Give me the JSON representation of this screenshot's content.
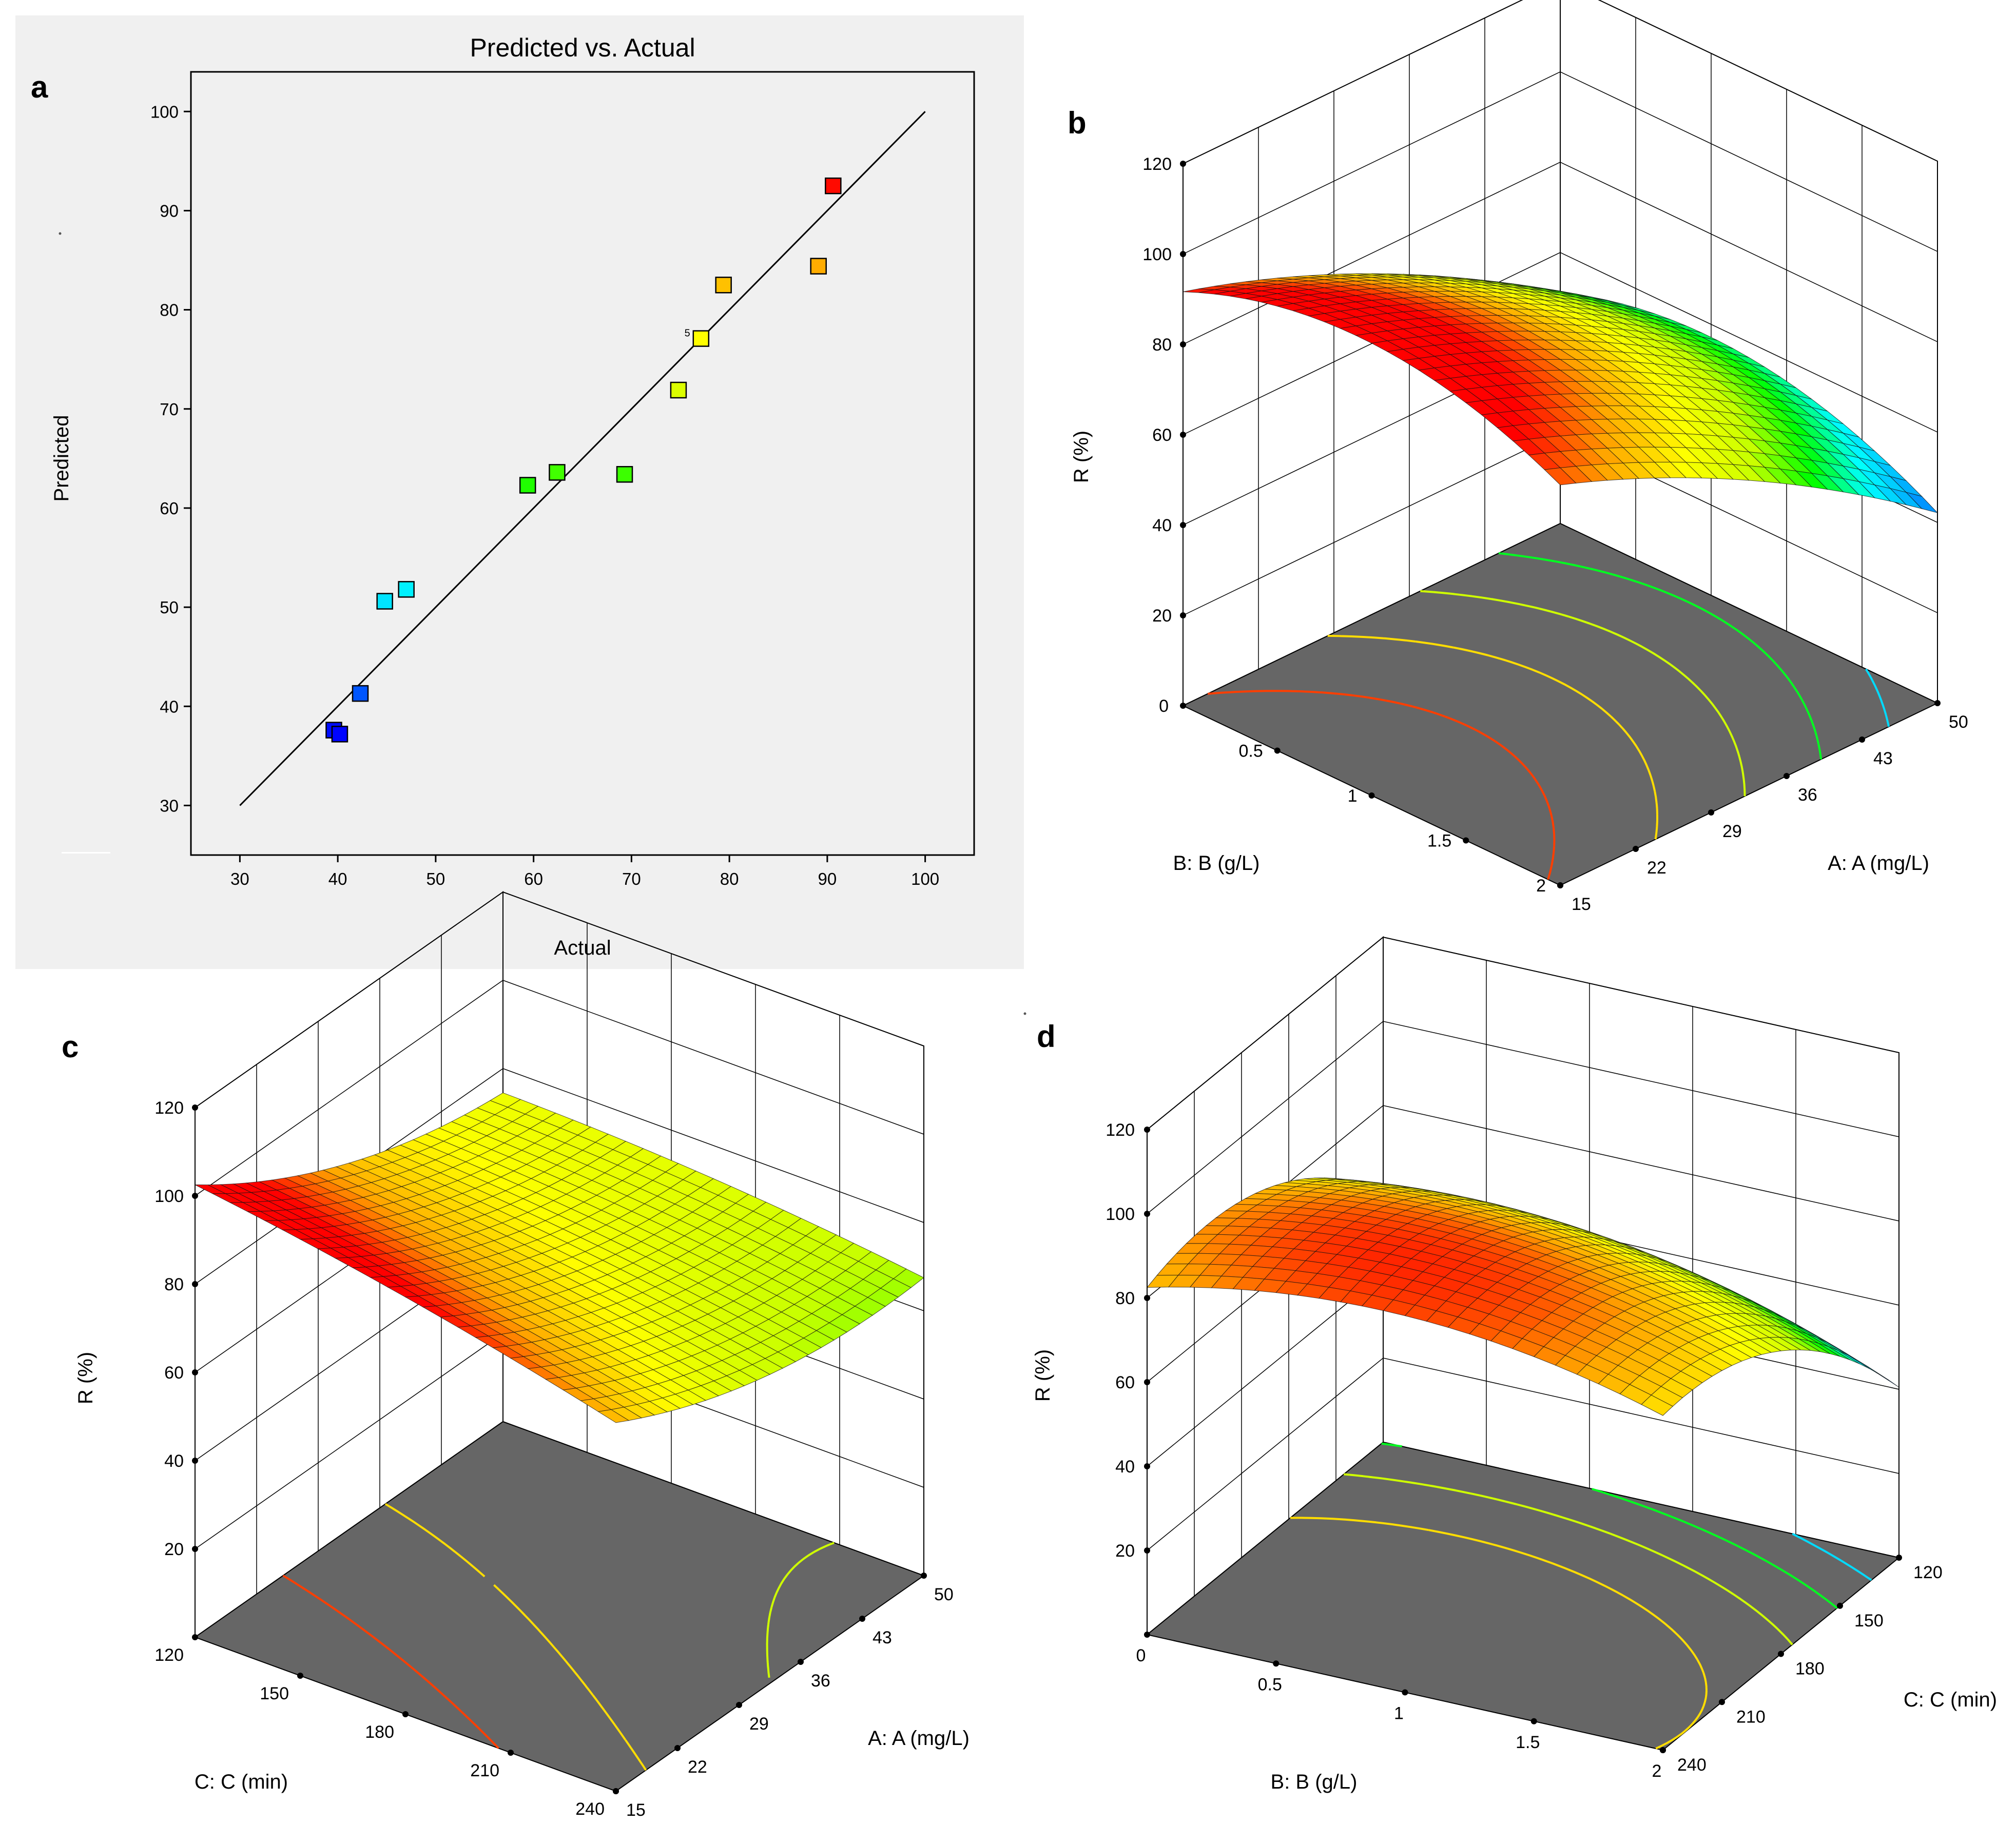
{
  "colors": {
    "panel_bg": "#f0f0f0",
    "floor": "#666666",
    "grid": "#000000",
    "line": "#000000",
    "point_stroke": "#000000",
    "colormap": [
      "#0000ff",
      "#00a0ff",
      "#00ffff",
      "#00ff00",
      "#c8ff00",
      "#ffff00",
      "#ffa500",
      "#ff0000"
    ]
  },
  "chart_data": [
    {
      "panel": "a",
      "panel_label": "a",
      "type": "scatter",
      "title": "Predicted vs. Actual",
      "xlabel": "Actual",
      "ylabel": "Predicted",
      "xlim": [
        25,
        105
      ],
      "ylim": [
        25,
        104
      ],
      "xticks": [
        30,
        40,
        50,
        60,
        70,
        80,
        90,
        100
      ],
      "yticks": [
        30,
        40,
        50,
        60,
        70,
        80,
        90,
        100
      ],
      "reference_line": {
        "x": [
          30,
          100
        ],
        "y": [
          30,
          100
        ]
      },
      "points": [
        {
          "x": 39.6,
          "y": 37.6
        },
        {
          "x": 40.2,
          "y": 37.2
        },
        {
          "x": 42.3,
          "y": 41.3
        },
        {
          "x": 44.8,
          "y": 50.6
        },
        {
          "x": 47.0,
          "y": 51.8
        },
        {
          "x": 59.4,
          "y": 62.3
        },
        {
          "x": 62.4,
          "y": 63.6
        },
        {
          "x": 69.3,
          "y": 63.4
        },
        {
          "x": 74.8,
          "y": 71.9
        },
        {
          "x": 77.1,
          "y": 77.1,
          "label": "5"
        },
        {
          "x": 79.4,
          "y": 82.5
        },
        {
          "x": 89.1,
          "y": 84.4
        },
        {
          "x": 90.6,
          "y": 92.5
        }
      ]
    },
    {
      "panel": "b",
      "panel_label": "b",
      "type": "surface",
      "zlabel": "R  (%)",
      "xlabel": "A: A (mg/L)",
      "ylabel": "B: B (g/L)",
      "zticks": [
        20,
        40,
        60,
        80,
        100,
        120
      ],
      "x_range": [
        15,
        50
      ],
      "y_range": [
        0,
        2
      ],
      "z_range": [
        0,
        120
      ],
      "xticks": [
        15,
        22,
        29,
        36,
        43,
        50
      ],
      "yticks": [
        "0",
        "0.5",
        "1",
        "1.5",
        "2"
      ],
      "surface": {
        "c0": 82.5,
        "ca": -21.75,
        "cb": 3.0,
        "caa": -4.1,
        "cbb": -10.0,
        "cab": 1.5
      },
      "contour_levels": [
        40,
        50,
        60,
        70,
        80,
        90
      ]
    },
    {
      "panel": "c",
      "panel_label": "c",
      "type": "surface",
      "zlabel": "R  (%)",
      "xlabel": "A: A (mg/L)",
      "ylabel": "C: C (min)",
      "zticks": [
        20,
        40,
        60,
        80,
        100,
        120
      ],
      "x_range": [
        15,
        50
      ],
      "y_range": [
        120,
        240
      ],
      "z_range": [
        0,
        120
      ],
      "xticks": [
        15,
        22,
        29,
        36,
        43,
        50
      ],
      "yticks": [
        "120",
        "150",
        "180",
        "210",
        "240"
      ],
      "surface": {
        "c0": 78.0,
        "ca": -11.0,
        "cb": 6.5,
        "caa": 5.5,
        "cbb": -1.5,
        "cab": -3.0
      },
      "contour_levels": [
        60,
        70,
        80,
        90
      ]
    },
    {
      "panel": "d",
      "panel_label": "d",
      "type": "surface",
      "zlabel": "R  (%)",
      "xlabel": "C: C (min)",
      "ylabel": "B: B (g/L)",
      "zticks": [
        20,
        40,
        60,
        80,
        100,
        120
      ],
      "x_range": [
        240,
        120
      ],
      "y_range": [
        0,
        2
      ],
      "z_range": [
        0,
        120
      ],
      "xticks": [
        "240",
        "210",
        "180",
        "150",
        "120"
      ],
      "yticks": [
        "0",
        "0.5",
        "1",
        "1.5",
        "2"
      ],
      "surface": {
        "c0": 86.0,
        "ca": -15.5,
        "cb": 5.5,
        "caa": -12.0,
        "cbb": -8.5,
        "cab": 4.0
      },
      "contour_levels": [
        40,
        50,
        60,
        70,
        80
      ]
    }
  ]
}
